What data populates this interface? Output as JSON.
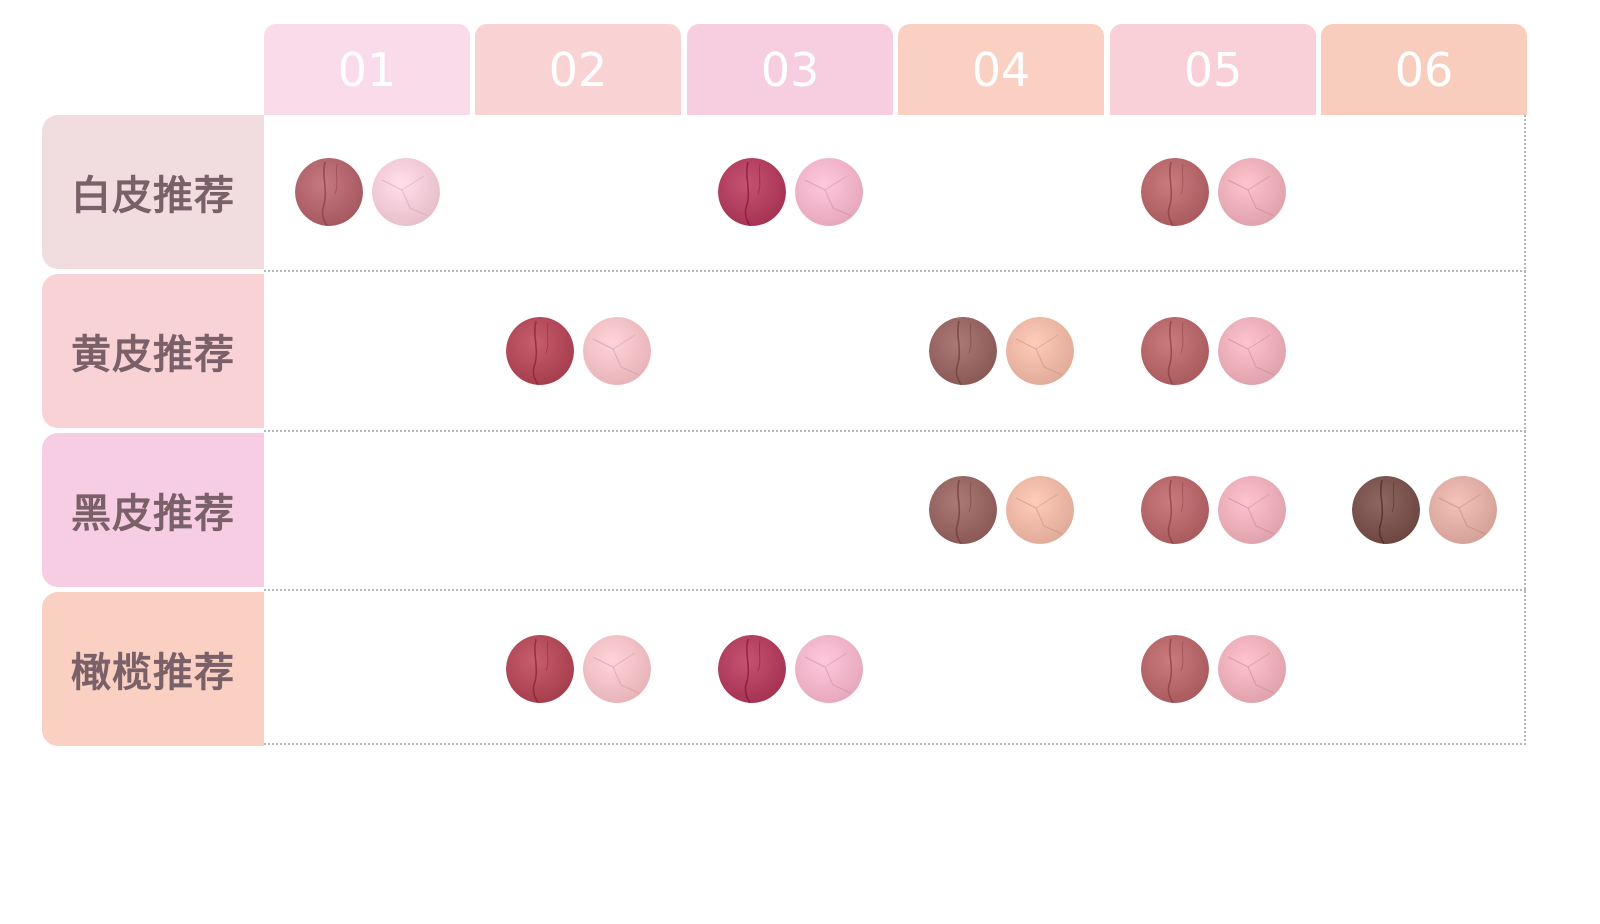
{
  "columns": [
    "01",
    "02",
    "03",
    "04",
    "05",
    "06"
  ],
  "rows": [
    {
      "label": "白皮推荐",
      "shades": [
        "01",
        "03",
        "05"
      ]
    },
    {
      "label": "黄皮推荐",
      "shades": [
        "02",
        "04",
        "05"
      ]
    },
    {
      "label": "黑皮推荐",
      "shades": [
        "04",
        "05",
        "06"
      ]
    },
    {
      "label": "橄榄推荐",
      "shades": [
        "02",
        "03",
        "05"
      ]
    }
  ],
  "colors": {
    "column_headers": [
      "#fadbe9",
      "#f9d3d3",
      "#f7cde0",
      "#fad0c3",
      "#f9d0d8",
      "#f8cdbd"
    ],
    "row_labels": [
      "#f1dde0",
      "#f9d2d6",
      "#f6cde2",
      "#f9d0c2"
    ],
    "shades": {
      "01": {
        "lip": "#b5676f",
        "blush": "#f8cdd9"
      },
      "02": {
        "lip": "#b54c5c",
        "blush": "#f6c2c7"
      },
      "03": {
        "lip": "#b4415f",
        "blush": "#f6b6cb"
      },
      "04": {
        "lip": "#9a6864",
        "blush": "#efbaa7"
      },
      "05": {
        "lip": "#b8696c",
        "blush": "#eeb1bb"
      },
      "06": {
        "lip": "#7c5550",
        "blush": "#e2b0a7"
      }
    }
  }
}
